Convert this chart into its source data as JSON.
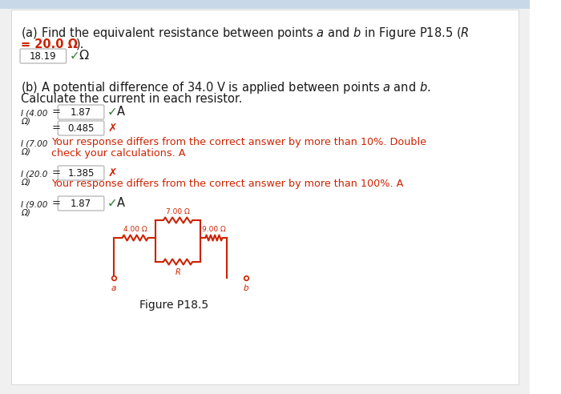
{
  "bg_color": "#ffffff",
  "border_color": "#cccccc",
  "text_color": "#1a1a1a",
  "red_color": "#cc2200",
  "green_color": "#2e7d32",
  "box_edge": "#aaaaaa",
  "resistor_color": "#cc2200",
  "top_bar_color": "#c8d8e8",
  "section_a_line1": "(a) Find the equivalent resistance between points ",
  "section_a_italic1": "a",
  "section_a_mid": " and ",
  "section_a_italic2": "b",
  "section_a_rest": " in Figure P18.5 (",
  "section_a_italic3": "R",
  "section_a_line2_red": "= 20.0 Ω",
  "section_a_line2_black": ").",
  "answer_a": "18.19",
  "omega": "Ω",
  "check": "✓",
  "section_b_line1": "(b) A potential difference of 34.0 V is applied between points ",
  "section_b_italic1": "a",
  "section_b_mid": " and ",
  "section_b_italic2": "b",
  "section_b_end": ".",
  "section_b_line2": "Calculate the current in each resistor.",
  "i1_label_top": "I (4.00",
  "i1_label_bot": "Ω)",
  "i1_val": "1.87",
  "i1_check": "✓",
  "i1_unit": "A",
  "i2_val": "0.485",
  "i3_label_top": "I (7.00",
  "i3_label_bot": "Ω)",
  "i3_msg1": "Your response differs from the correct answer by more than 10%. Double",
  "i3_msg2": "check your calculations.",
  "i3_unit": "A",
  "i4_label_top": "I (20.0",
  "i4_label_bot": "Ω)",
  "i4_val": "1.385",
  "i4_msg": "Your response differs from the correct answer by more than 100%.",
  "i4_unit": "A",
  "i5_label_top": "I (9.00",
  "i5_label_bot": "Ω)",
  "i5_val": "1.87",
  "i5_check": "✓",
  "i5_unit": "A",
  "fig_caption": "Figure P18.5",
  "r1_label": "4.00 Ω",
  "r2_label": "7.00 Ω",
  "r3_label": "9.00 Ω",
  "r4_label": "R",
  "node_a": "a",
  "node_b": "b"
}
